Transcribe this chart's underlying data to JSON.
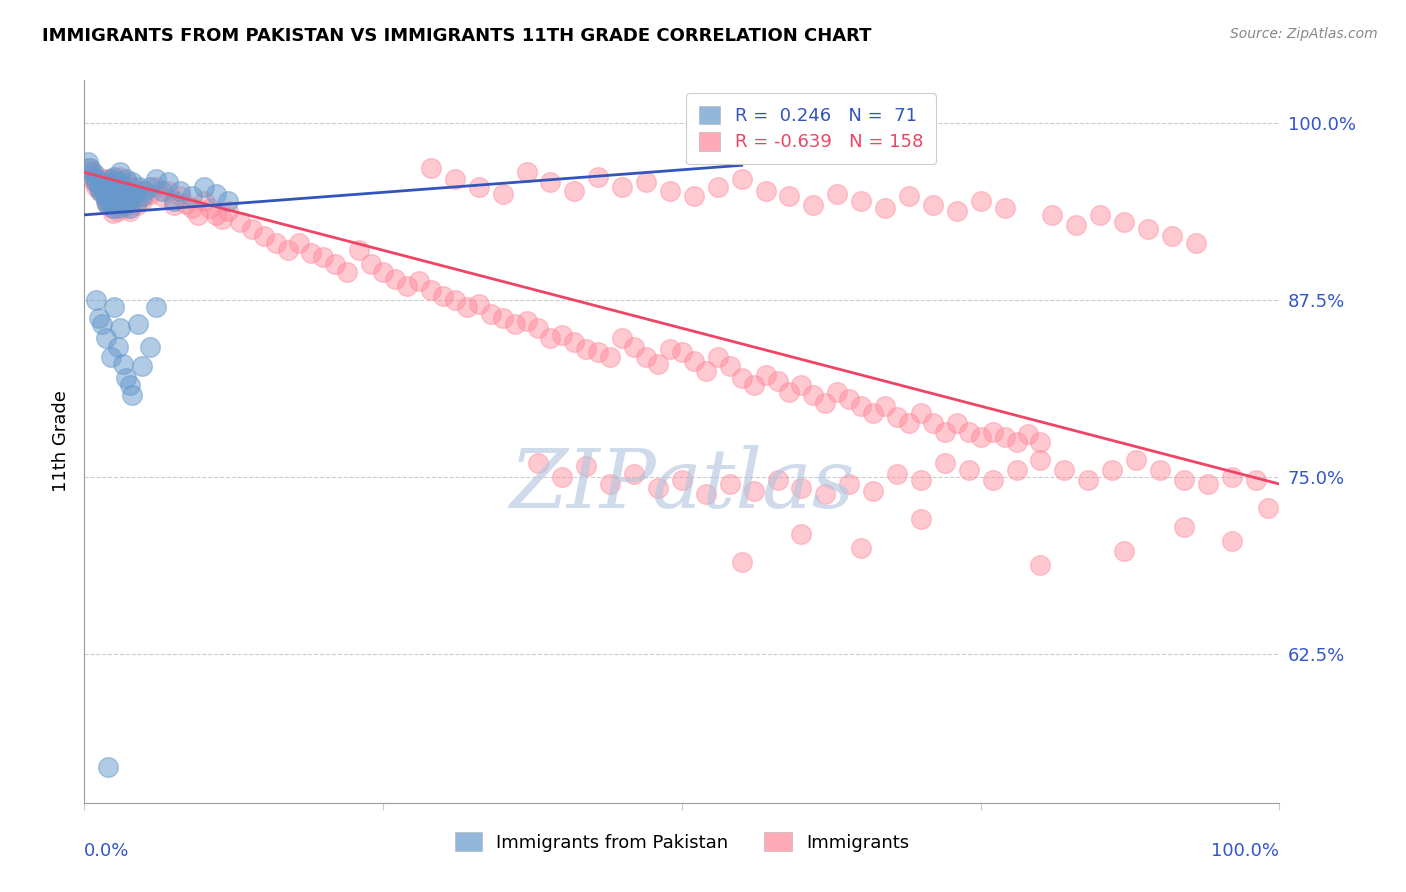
{
  "title": "IMMIGRANTS FROM PAKISTAN VS IMMIGRANTS 11TH GRADE CORRELATION CHART",
  "source": "Source: ZipAtlas.com",
  "ylabel": "11th Grade",
  "yaxis_labels": [
    "100.0%",
    "87.5%",
    "75.0%",
    "62.5%"
  ],
  "yaxis_values": [
    1.0,
    0.875,
    0.75,
    0.625
  ],
  "xlim": [
    0.0,
    1.0
  ],
  "ylim": [
    0.52,
    1.03
  ],
  "blue_R": 0.246,
  "blue_N": 71,
  "pink_R": -0.639,
  "pink_N": 158,
  "blue_color": "#6699cc",
  "pink_color": "#ff8899",
  "blue_line_color": "#3355bb",
  "pink_line_color": "#ee4466",
  "watermark": "ZIPatlas",
  "watermark_color": "#b0c4de",
  "legend_label_blue": "Immigrants from Pakistan",
  "legend_label_pink": "Immigrants",
  "blue_line_x": [
    0.0,
    0.55
  ],
  "blue_line_y": [
    0.935,
    0.97
  ],
  "pink_line_x": [
    0.0,
    1.0
  ],
  "pink_line_y": [
    0.965,
    0.745
  ],
  "blue_dots": [
    [
      0.003,
      0.972
    ],
    [
      0.005,
      0.968
    ],
    [
      0.007,
      0.965
    ],
    [
      0.008,
      0.962
    ],
    [
      0.01,
      0.96
    ],
    [
      0.01,
      0.958
    ],
    [
      0.012,
      0.955
    ],
    [
      0.013,
      0.952
    ],
    [
      0.015,
      0.958
    ],
    [
      0.015,
      0.955
    ],
    [
      0.016,
      0.952
    ],
    [
      0.017,
      0.95
    ],
    [
      0.018,
      0.948
    ],
    [
      0.018,
      0.945
    ],
    [
      0.019,
      0.943
    ],
    [
      0.02,
      0.958
    ],
    [
      0.02,
      0.952
    ],
    [
      0.02,
      0.948
    ],
    [
      0.021,
      0.945
    ],
    [
      0.022,
      0.96
    ],
    [
      0.022,
      0.955
    ],
    [
      0.022,
      0.948
    ],
    [
      0.023,
      0.943
    ],
    [
      0.024,
      0.94
    ],
    [
      0.025,
      0.962
    ],
    [
      0.025,
      0.958
    ],
    [
      0.026,
      0.95
    ],
    [
      0.027,
      0.945
    ],
    [
      0.028,
      0.952
    ],
    [
      0.028,
      0.94
    ],
    [
      0.03,
      0.965
    ],
    [
      0.03,
      0.958
    ],
    [
      0.03,
      0.945
    ],
    [
      0.032,
      0.955
    ],
    [
      0.033,
      0.948
    ],
    [
      0.034,
      0.942
    ],
    [
      0.035,
      0.96
    ],
    [
      0.036,
      0.952
    ],
    [
      0.037,
      0.945
    ],
    [
      0.038,
      0.94
    ],
    [
      0.04,
      0.958
    ],
    [
      0.042,
      0.95
    ],
    [
      0.044,
      0.945
    ],
    [
      0.046,
      0.955
    ],
    [
      0.048,
      0.948
    ],
    [
      0.05,
      0.952
    ],
    [
      0.055,
      0.955
    ],
    [
      0.06,
      0.96
    ],
    [
      0.065,
      0.952
    ],
    [
      0.07,
      0.958
    ],
    [
      0.075,
      0.945
    ],
    [
      0.08,
      0.952
    ],
    [
      0.09,
      0.948
    ],
    [
      0.1,
      0.955
    ],
    [
      0.11,
      0.95
    ],
    [
      0.12,
      0.945
    ],
    [
      0.025,
      0.87
    ],
    [
      0.03,
      0.855
    ],
    [
      0.028,
      0.842
    ],
    [
      0.032,
      0.83
    ],
    [
      0.035,
      0.82
    ],
    [
      0.04,
      0.808
    ],
    [
      0.038,
      0.815
    ],
    [
      0.022,
      0.835
    ],
    [
      0.018,
      0.848
    ],
    [
      0.012,
      0.862
    ],
    [
      0.01,
      0.875
    ],
    [
      0.015,
      0.858
    ],
    [
      0.06,
      0.87
    ],
    [
      0.045,
      0.858
    ],
    [
      0.055,
      0.842
    ],
    [
      0.048,
      0.828
    ],
    [
      0.02,
      0.545
    ]
  ],
  "pink_dots": [
    [
      0.003,
      0.968
    ],
    [
      0.005,
      0.965
    ],
    [
      0.007,
      0.96
    ],
    [
      0.008,
      0.958
    ],
    [
      0.01,
      0.963
    ],
    [
      0.01,
      0.955
    ],
    [
      0.012,
      0.958
    ],
    [
      0.013,
      0.952
    ],
    [
      0.015,
      0.96
    ],
    [
      0.015,
      0.953
    ],
    [
      0.016,
      0.95
    ],
    [
      0.017,
      0.948
    ],
    [
      0.018,
      0.955
    ],
    [
      0.018,
      0.945
    ],
    [
      0.019,
      0.943
    ],
    [
      0.02,
      0.96
    ],
    [
      0.02,
      0.953
    ],
    [
      0.02,
      0.948
    ],
    [
      0.021,
      0.943
    ],
    [
      0.022,
      0.958
    ],
    [
      0.022,
      0.952
    ],
    [
      0.022,
      0.945
    ],
    [
      0.023,
      0.94
    ],
    [
      0.024,
      0.936
    ],
    [
      0.025,
      0.96
    ],
    [
      0.025,
      0.955
    ],
    [
      0.026,
      0.948
    ],
    [
      0.027,
      0.943
    ],
    [
      0.028,
      0.95
    ],
    [
      0.028,
      0.938
    ],
    [
      0.03,
      0.962
    ],
    [
      0.03,
      0.955
    ],
    [
      0.03,
      0.943
    ],
    [
      0.032,
      0.952
    ],
    [
      0.033,
      0.945
    ],
    [
      0.034,
      0.94
    ],
    [
      0.035,
      0.958
    ],
    [
      0.036,
      0.95
    ],
    [
      0.037,
      0.943
    ],
    [
      0.038,
      0.938
    ],
    [
      0.04,
      0.955
    ],
    [
      0.042,
      0.948
    ],
    [
      0.044,
      0.942
    ],
    [
      0.046,
      0.952
    ],
    [
      0.048,
      0.945
    ],
    [
      0.05,
      0.948
    ],
    [
      0.055,
      0.95
    ],
    [
      0.06,
      0.955
    ],
    [
      0.065,
      0.948
    ],
    [
      0.07,
      0.952
    ],
    [
      0.075,
      0.942
    ],
    [
      0.08,
      0.948
    ],
    [
      0.085,
      0.943
    ],
    [
      0.09,
      0.94
    ],
    [
      0.095,
      0.935
    ],
    [
      0.1,
      0.945
    ],
    [
      0.105,
      0.94
    ],
    [
      0.11,
      0.935
    ],
    [
      0.115,
      0.932
    ],
    [
      0.12,
      0.938
    ],
    [
      0.13,
      0.93
    ],
    [
      0.14,
      0.925
    ],
    [
      0.15,
      0.92
    ],
    [
      0.16,
      0.915
    ],
    [
      0.17,
      0.91
    ],
    [
      0.18,
      0.915
    ],
    [
      0.19,
      0.908
    ],
    [
      0.2,
      0.905
    ],
    [
      0.21,
      0.9
    ],
    [
      0.22,
      0.895
    ],
    [
      0.23,
      0.91
    ],
    [
      0.24,
      0.9
    ],
    [
      0.25,
      0.895
    ],
    [
      0.26,
      0.89
    ],
    [
      0.27,
      0.885
    ],
    [
      0.28,
      0.888
    ],
    [
      0.29,
      0.882
    ],
    [
      0.3,
      0.878
    ],
    [
      0.31,
      0.875
    ],
    [
      0.32,
      0.87
    ],
    [
      0.33,
      0.872
    ],
    [
      0.34,
      0.865
    ],
    [
      0.35,
      0.862
    ],
    [
      0.36,
      0.858
    ],
    [
      0.37,
      0.86
    ],
    [
      0.38,
      0.855
    ],
    [
      0.39,
      0.848
    ],
    [
      0.4,
      0.85
    ],
    [
      0.41,
      0.845
    ],
    [
      0.42,
      0.84
    ],
    [
      0.43,
      0.838
    ],
    [
      0.44,
      0.835
    ],
    [
      0.45,
      0.848
    ],
    [
      0.46,
      0.842
    ],
    [
      0.47,
      0.835
    ],
    [
      0.48,
      0.83
    ],
    [
      0.49,
      0.84
    ],
    [
      0.5,
      0.838
    ],
    [
      0.51,
      0.832
    ],
    [
      0.52,
      0.825
    ],
    [
      0.53,
      0.835
    ],
    [
      0.54,
      0.828
    ],
    [
      0.55,
      0.82
    ],
    [
      0.56,
      0.815
    ],
    [
      0.57,
      0.822
    ],
    [
      0.58,
      0.818
    ],
    [
      0.59,
      0.81
    ],
    [
      0.6,
      0.815
    ],
    [
      0.61,
      0.808
    ],
    [
      0.62,
      0.802
    ],
    [
      0.63,
      0.81
    ],
    [
      0.64,
      0.805
    ],
    [
      0.65,
      0.8
    ],
    [
      0.66,
      0.795
    ],
    [
      0.67,
      0.8
    ],
    [
      0.68,
      0.792
    ],
    [
      0.69,
      0.788
    ],
    [
      0.7,
      0.795
    ],
    [
      0.71,
      0.788
    ],
    [
      0.72,
      0.782
    ],
    [
      0.73,
      0.788
    ],
    [
      0.74,
      0.782
    ],
    [
      0.75,
      0.778
    ],
    [
      0.76,
      0.782
    ],
    [
      0.77,
      0.778
    ],
    [
      0.78,
      0.775
    ],
    [
      0.79,
      0.78
    ],
    [
      0.8,
      0.775
    ],
    [
      0.29,
      0.968
    ],
    [
      0.31,
      0.96
    ],
    [
      0.33,
      0.955
    ],
    [
      0.35,
      0.95
    ],
    [
      0.37,
      0.965
    ],
    [
      0.39,
      0.958
    ],
    [
      0.41,
      0.952
    ],
    [
      0.43,
      0.962
    ],
    [
      0.45,
      0.955
    ],
    [
      0.47,
      0.958
    ],
    [
      0.49,
      0.952
    ],
    [
      0.51,
      0.948
    ],
    [
      0.53,
      0.955
    ],
    [
      0.55,
      0.96
    ],
    [
      0.57,
      0.952
    ],
    [
      0.59,
      0.948
    ],
    [
      0.61,
      0.942
    ],
    [
      0.63,
      0.95
    ],
    [
      0.65,
      0.945
    ],
    [
      0.67,
      0.94
    ],
    [
      0.69,
      0.948
    ],
    [
      0.71,
      0.942
    ],
    [
      0.73,
      0.938
    ],
    [
      0.75,
      0.945
    ],
    [
      0.77,
      0.94
    ],
    [
      0.81,
      0.935
    ],
    [
      0.83,
      0.928
    ],
    [
      0.85,
      0.935
    ],
    [
      0.87,
      0.93
    ],
    [
      0.89,
      0.925
    ],
    [
      0.91,
      0.92
    ],
    [
      0.93,
      0.915
    ],
    [
      0.38,
      0.76
    ],
    [
      0.4,
      0.75
    ],
    [
      0.42,
      0.758
    ],
    [
      0.44,
      0.745
    ],
    [
      0.46,
      0.752
    ],
    [
      0.48,
      0.742
    ],
    [
      0.5,
      0.748
    ],
    [
      0.52,
      0.738
    ],
    [
      0.54,
      0.745
    ],
    [
      0.56,
      0.74
    ],
    [
      0.58,
      0.748
    ],
    [
      0.6,
      0.742
    ],
    [
      0.62,
      0.738
    ],
    [
      0.64,
      0.745
    ],
    [
      0.66,
      0.74
    ],
    [
      0.68,
      0.752
    ],
    [
      0.7,
      0.748
    ],
    [
      0.72,
      0.76
    ],
    [
      0.74,
      0.755
    ],
    [
      0.76,
      0.748
    ],
    [
      0.78,
      0.755
    ],
    [
      0.8,
      0.762
    ],
    [
      0.82,
      0.755
    ],
    [
      0.84,
      0.748
    ],
    [
      0.86,
      0.755
    ],
    [
      0.88,
      0.762
    ],
    [
      0.9,
      0.755
    ],
    [
      0.92,
      0.748
    ],
    [
      0.94,
      0.745
    ],
    [
      0.96,
      0.75
    ],
    [
      0.98,
      0.748
    ],
    [
      0.99,
      0.728
    ],
    [
      0.55,
      0.69
    ],
    [
      0.6,
      0.71
    ],
    [
      0.65,
      0.7
    ],
    [
      0.7,
      0.72
    ],
    [
      0.8,
      0.688
    ],
    [
      0.87,
      0.698
    ],
    [
      0.92,
      0.715
    ],
    [
      0.96,
      0.705
    ]
  ]
}
